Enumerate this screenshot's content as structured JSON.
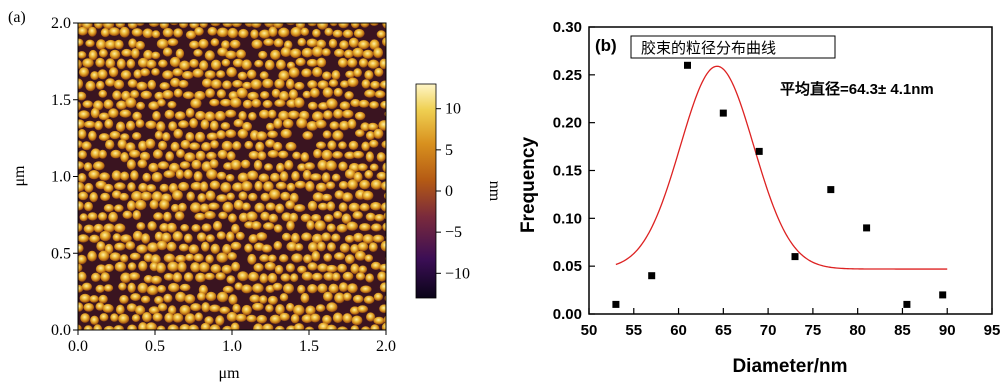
{
  "panel_a": {
    "label": "(a)",
    "x_axis": {
      "label": "μm",
      "ticks": [
        "0.0",
        "0.5",
        "1.0",
        "1.5",
        "2.0"
      ]
    },
    "y_axis": {
      "label": "μm",
      "ticks": [
        "0.0",
        "0.5",
        "1.0",
        "1.5",
        "2.0"
      ]
    },
    "colorbar": {
      "label": "nm",
      "ticks": [
        "10",
        "5",
        "0",
        "−5",
        "−10"
      ],
      "range": [
        -13,
        13
      ]
    }
  },
  "panel_b": {
    "label": "(b)",
    "legend": "胶束的粒径分布曲线",
    "annotation": "平均直径=64.3± 4.1nm"
  },
  "chart_data": {
    "type": "scatter",
    "title": "",
    "xlabel": "Diameter/nm",
    "ylabel": "Frequency",
    "xlim": [
      50,
      95
    ],
    "ylim": [
      0,
      0.3
    ],
    "xticks": [
      "50",
      "55",
      "60",
      "65",
      "70",
      "75",
      "80",
      "85",
      "90",
      "95"
    ],
    "yticks": [
      "0.00",
      "0.05",
      "0.10",
      "0.15",
      "0.20",
      "0.25",
      "0.30"
    ],
    "series": [
      {
        "kind": "points",
        "x": [
          53.0,
          57.0,
          61.0,
          65.0,
          69.0,
          73.0,
          77.0,
          81.0,
          85.5,
          89.5
        ],
        "y": [
          0.01,
          0.04,
          0.26,
          0.21,
          0.17,
          0.06,
          0.13,
          0.09,
          0.01,
          0.02
        ]
      },
      {
        "kind": "gaussian-fit",
        "color": "#dd2222",
        "x_start": 53.0,
        "x_end": 90.0,
        "baseline": 0.047,
        "amplitude": 0.212,
        "center": 64.3,
        "sigma": 4.1
      }
    ]
  }
}
